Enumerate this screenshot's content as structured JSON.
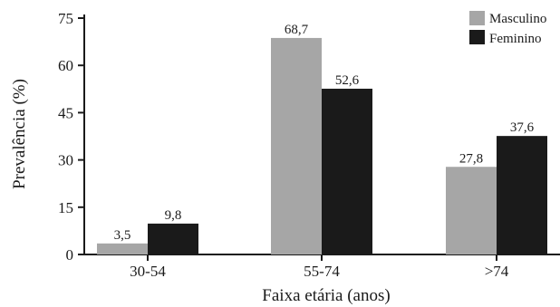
{
  "chart_data": {
    "type": "bar",
    "categories": [
      "30-54",
      "55-74",
      ">74"
    ],
    "series": [
      {
        "name": "Masculino",
        "values": [
          3.5,
          68.7,
          27.8
        ],
        "labels": [
          "3,5",
          "68,7",
          "27,8"
        ],
        "color": "#a6a6a6"
      },
      {
        "name": "Feminino",
        "values": [
          9.8,
          52.6,
          37.6
        ],
        "labels": [
          "9,8",
          "52,6",
          "37,6"
        ],
        "color": "#1a1a1a"
      }
    ],
    "xlabel": "Faixa etária (anos)",
    "ylabel": "Prevalência (%)",
    "ylim": [
      0,
      75
    ],
    "yticks": [
      0,
      15,
      30,
      45,
      60,
      75
    ],
    "grid": false,
    "legend_position": "top-right"
  }
}
